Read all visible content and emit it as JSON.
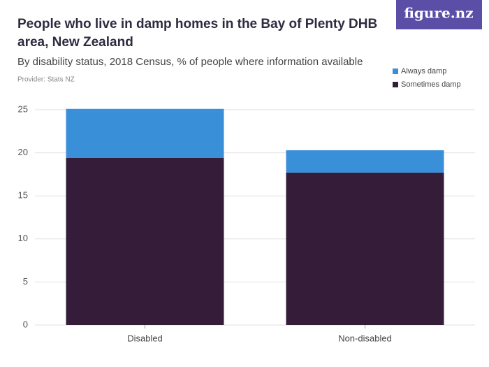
{
  "logo": "figure.nz",
  "chart_data": {
    "type": "stacked_bar",
    "title": "People who live in damp homes in the Bay of Plenty DHB area, New Zealand",
    "subtitle": "By disability status, 2018 Census, % of people where information available",
    "provider": "Provider: Stats NZ",
    "categories": [
      "Disabled",
      "Non-disabled"
    ],
    "series": [
      {
        "name": "Sometimes damp",
        "color": "#351d3a",
        "values": [
          19.4,
          17.7
        ]
      },
      {
        "name": "Always damp",
        "color": "#3a8fd9",
        "values": [
          5.7,
          2.6
        ]
      }
    ],
    "ylim": [
      0,
      25
    ],
    "yticks": [
      0,
      5,
      10,
      15,
      20,
      25
    ],
    "grid": true
  }
}
